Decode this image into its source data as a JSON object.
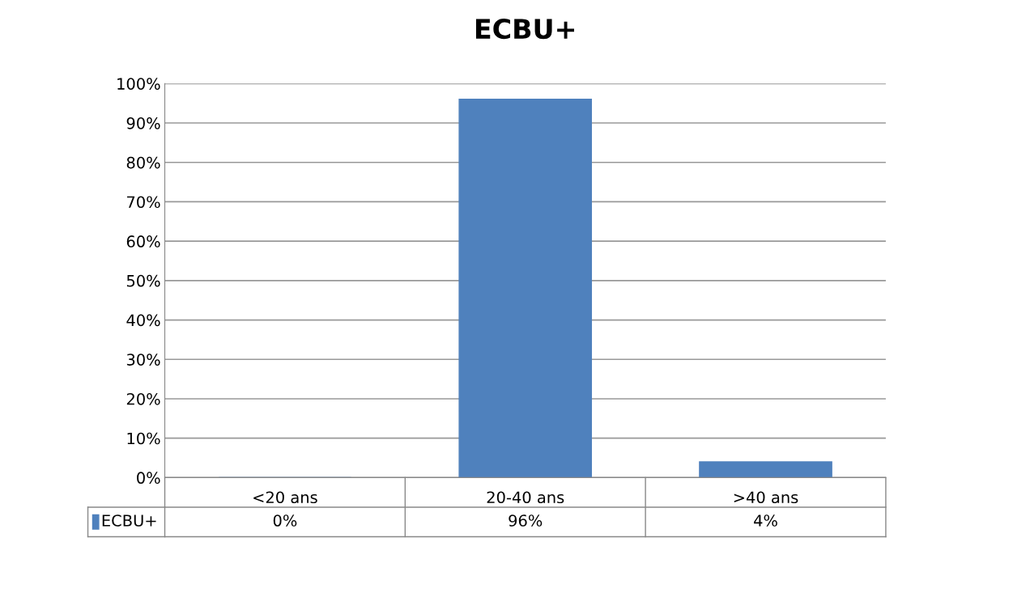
{
  "chart_data": {
    "type": "bar",
    "title": "ECBU+",
    "categories": [
      "<20 ans",
      "20-40 ans",
      ">40 ans"
    ],
    "series": [
      {
        "name": "ECBU+",
        "color": "#4f81bd",
        "values": [
          0,
          96,
          4
        ],
        "value_labels": [
          "0%",
          "96%",
          "4%"
        ]
      }
    ],
    "ylim": [
      0,
      100
    ],
    "yticks": [
      {
        "value": 0,
        "label": "0%"
      },
      {
        "value": 10,
        "label": "10%"
      },
      {
        "value": 20,
        "label": "20%"
      },
      {
        "value": 30,
        "label": "30%"
      },
      {
        "value": 40,
        "label": "40%"
      },
      {
        "value": 50,
        "label": "50%"
      },
      {
        "value": 60,
        "label": "60%"
      },
      {
        "value": 70,
        "label": "70%"
      },
      {
        "value": 80,
        "label": "80%"
      },
      {
        "value": 90,
        "label": "90%"
      },
      {
        "value": 100,
        "label": "100%"
      }
    ],
    "grid": "y",
    "legend": "bottom left"
  }
}
